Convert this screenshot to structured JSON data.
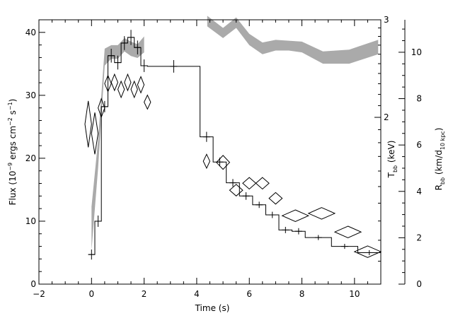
{
  "chart_data": {
    "type": "scatter",
    "xlabel": "Time (s)",
    "xlim": [
      -2,
      11
    ],
    "xticks": [
      -2,
      0,
      2,
      4,
      6,
      8,
      10
    ],
    "left_axis": {
      "label_main": "Flux (10",
      "label_sup1": "−9",
      "label_mid": " ergs cm",
      "label_sup2": "−2",
      "label_mid2": " s",
      "label_sup3": "−1",
      "label_end": ")",
      "ylim": [
        0,
        42
      ],
      "ticks": [
        0,
        10,
        20,
        30,
        40
      ]
    },
    "temp_axis": {
      "label_main": "T",
      "label_sub": "bb",
      "label_end": " (keV)",
      "scale": "log",
      "ylim": [
        1,
        3
      ],
      "ticks": [
        2,
        3
      ]
    },
    "radius_axis": {
      "label_main": "R",
      "label_sub": "bb",
      "label_mid": " (km/d",
      "label_sub2": "10 kpc",
      "label_end": ")",
      "ylim": [
        0,
        11.4
      ],
      "ticks": [
        0,
        2,
        4,
        6,
        8,
        10
      ]
    },
    "series": [
      {
        "kind": "flux_histogram",
        "color": "#000000",
        "edges": [
          -0.125,
          0.125,
          0.375,
          0.625,
          0.875,
          1.125,
          1.375,
          1.625,
          1.875,
          2.125,
          4.125,
          4.625,
          5.125,
          5.625,
          6.125,
          6.625,
          7.125,
          7.625,
          8.125,
          9.125,
          10.125,
          11.0
        ],
        "values": [
          4.7,
          10.0,
          28.2,
          36.3,
          35.2,
          38.3,
          39.2,
          37.6,
          34.7,
          34.6,
          23.4,
          19.4,
          16.1,
          14.0,
          12.6,
          11.0,
          8.6,
          8.4,
          7.4,
          6.0,
          5.0
        ],
        "errors": [
          0.8,
          0.9,
          0.9,
          1.1,
          1.1,
          1.1,
          1.2,
          1.1,
          1.0,
          1.0,
          0.8,
          0.7,
          0.6,
          0.6,
          0.5,
          0.5,
          0.5,
          0.5,
          0.4,
          0.4,
          0.4
        ]
      },
      {
        "kind": "temperature_band",
        "color": "#aaaaaa",
        "segments": [
          {
            "x": [
              0.0,
              0.25,
              0.5,
              0.75,
              1.0,
              1.25,
              1.5,
              1.75,
              2.0
            ],
            "low": [
              1.15,
              1.62,
              2.48,
              2.55,
              2.55,
              2.63,
              2.58,
              2.56,
              2.62
            ],
            "high": [
              1.38,
              1.82,
              2.66,
              2.7,
              2.7,
              2.78,
              2.74,
              2.71,
              2.8
            ]
          },
          {
            "x": [
              4.4,
              5.0,
              5.5,
              6.0,
              6.5,
              7.0,
              7.5,
              8.0,
              8.8,
              9.8,
              10.9
            ],
            "low": [
              2.92,
              2.78,
              2.9,
              2.7,
              2.6,
              2.64,
              2.64,
              2.62,
              2.5,
              2.5,
              2.6
            ],
            "high": [
              3.05,
              2.9,
              3.03,
              2.83,
              2.73,
              2.76,
              2.75,
              2.74,
              2.63,
              2.65,
              2.76
            ]
          }
        ]
      },
      {
        "kind": "radius_diamonds",
        "color": "#000000",
        "points": [
          {
            "t": -0.125,
            "dt": 0.125,
            "r": 6.9,
            "dr": 1.0
          },
          {
            "t": 0.125,
            "dt": 0.125,
            "r": 6.5,
            "dr": 0.9
          },
          {
            "t": 0.375,
            "dt": 0.125,
            "r": 7.6,
            "dr": 0.4
          },
          {
            "t": 0.625,
            "dt": 0.125,
            "r": 8.65,
            "dr": 0.35
          },
          {
            "t": 0.875,
            "dt": 0.125,
            "r": 8.7,
            "dr": 0.35
          },
          {
            "t": 1.125,
            "dt": 0.125,
            "r": 8.4,
            "dr": 0.35
          },
          {
            "t": 1.375,
            "dt": 0.125,
            "r": 8.7,
            "dr": 0.35
          },
          {
            "t": 1.625,
            "dt": 0.125,
            "r": 8.4,
            "dr": 0.35
          },
          {
            "t": 1.875,
            "dt": 0.125,
            "r": 8.6,
            "dr": 0.35
          },
          {
            "t": 2.125,
            "dt": 0.125,
            "r": 7.85,
            "dr": 0.3
          },
          {
            "t": 4.375,
            "dt": 0.125,
            "r": 5.3,
            "dr": 0.3
          },
          {
            "t": 5.0,
            "dt": 0.25,
            "r": 5.25,
            "dr": 0.3
          },
          {
            "t": 5.5,
            "dt": 0.25,
            "r": 4.05,
            "dr": 0.25
          },
          {
            "t": 6.0,
            "dt": 0.25,
            "r": 4.35,
            "dr": 0.25
          },
          {
            "t": 6.5,
            "dt": 0.25,
            "r": 4.35,
            "dr": 0.25
          },
          {
            "t": 7.0,
            "dt": 0.25,
            "r": 3.7,
            "dr": 0.25
          },
          {
            "t": 7.75,
            "dt": 0.5,
            "r": 2.95,
            "dr": 0.25
          },
          {
            "t": 8.75,
            "dt": 0.5,
            "r": 3.05,
            "dr": 0.25
          },
          {
            "t": 9.75,
            "dt": 0.5,
            "r": 2.25,
            "dr": 0.25
          },
          {
            "t": 10.5,
            "dt": 0.5,
            "r": 1.4,
            "dr": 0.25
          }
        ]
      }
    ]
  }
}
